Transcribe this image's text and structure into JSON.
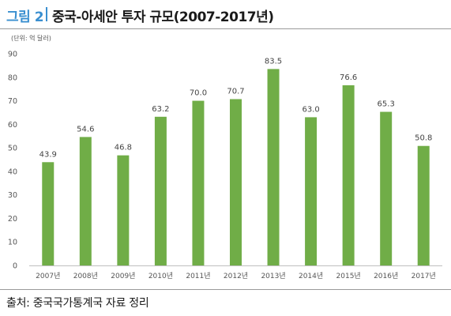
{
  "figure": {
    "label": "그림 2",
    "title": "중국-아세안 투자 규모(2007-2017년)",
    "unit": "(단위: 억 달러)",
    "source": "출처: 중국국가통계국 자료 정리"
  },
  "chart_data": {
    "type": "bar",
    "categories": [
      "2007년",
      "2008년",
      "2009년",
      "2010년",
      "2011년",
      "2012년",
      "2013년",
      "2014년",
      "2015년",
      "2016년",
      "2017년"
    ],
    "values": [
      43.9,
      54.6,
      46.8,
      63.2,
      70.0,
      70.7,
      83.5,
      63.0,
      76.6,
      65.3,
      50.8
    ],
    "value_labels": [
      "43.9",
      "54.6",
      "46.8",
      "63.2",
      "70.0",
      "70.7",
      "83.5",
      "63.0",
      "76.6",
      "65.3",
      "50.8"
    ],
    "y_ticks": [
      0,
      10,
      20,
      30,
      40,
      50,
      60,
      70,
      80,
      90
    ],
    "ylim": [
      0,
      90
    ],
    "grid": false,
    "legend": "none",
    "bar_color": "#70ad47"
  }
}
